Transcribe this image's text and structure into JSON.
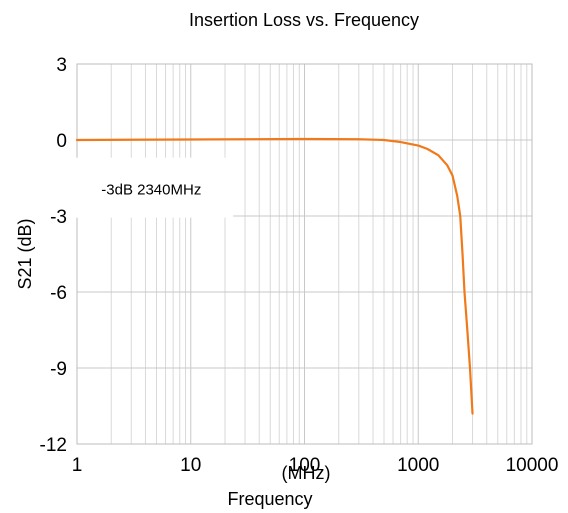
{
  "chart_data": {
    "type": "line",
    "title": "Insertion Loss vs. Frequency",
    "xlabel": "Frequency",
    "xunit": "(MHz)",
    "ylabel": "S21 (dB)",
    "xscale": "log",
    "xlim": [
      1,
      10000
    ],
    "ylim": [
      -12,
      3
    ],
    "xticks": [
      1,
      10,
      100,
      1000,
      10000
    ],
    "xtick_labels": [
      "1",
      "10",
      "100",
      "1000",
      "10000"
    ],
    "yticks": [
      3,
      0,
      -3,
      -6,
      -9,
      -12
    ],
    "ytick_labels": [
      "3",
      "0",
      "-3",
      "-6",
      "-9",
      "-12"
    ],
    "grid": true,
    "annotation": {
      "text": "-3dB  2340MHz",
      "x": 4.5,
      "y": -2
    },
    "series": [
      {
        "color": "#f07a1a",
        "x": [
          1,
          10,
          100,
          300,
          500,
          700,
          1000,
          1200,
          1500,
          1800,
          2000,
          2200,
          2340,
          2450,
          2550,
          2700,
          2850,
          3000
        ],
        "y": [
          0,
          0.02,
          0.04,
          0.03,
          0.0,
          -0.08,
          -0.22,
          -0.35,
          -0.6,
          -1.0,
          -1.4,
          -2.2,
          -3.0,
          -4.5,
          -6.0,
          -7.5,
          -9.0,
          -10.8
        ]
      }
    ]
  }
}
